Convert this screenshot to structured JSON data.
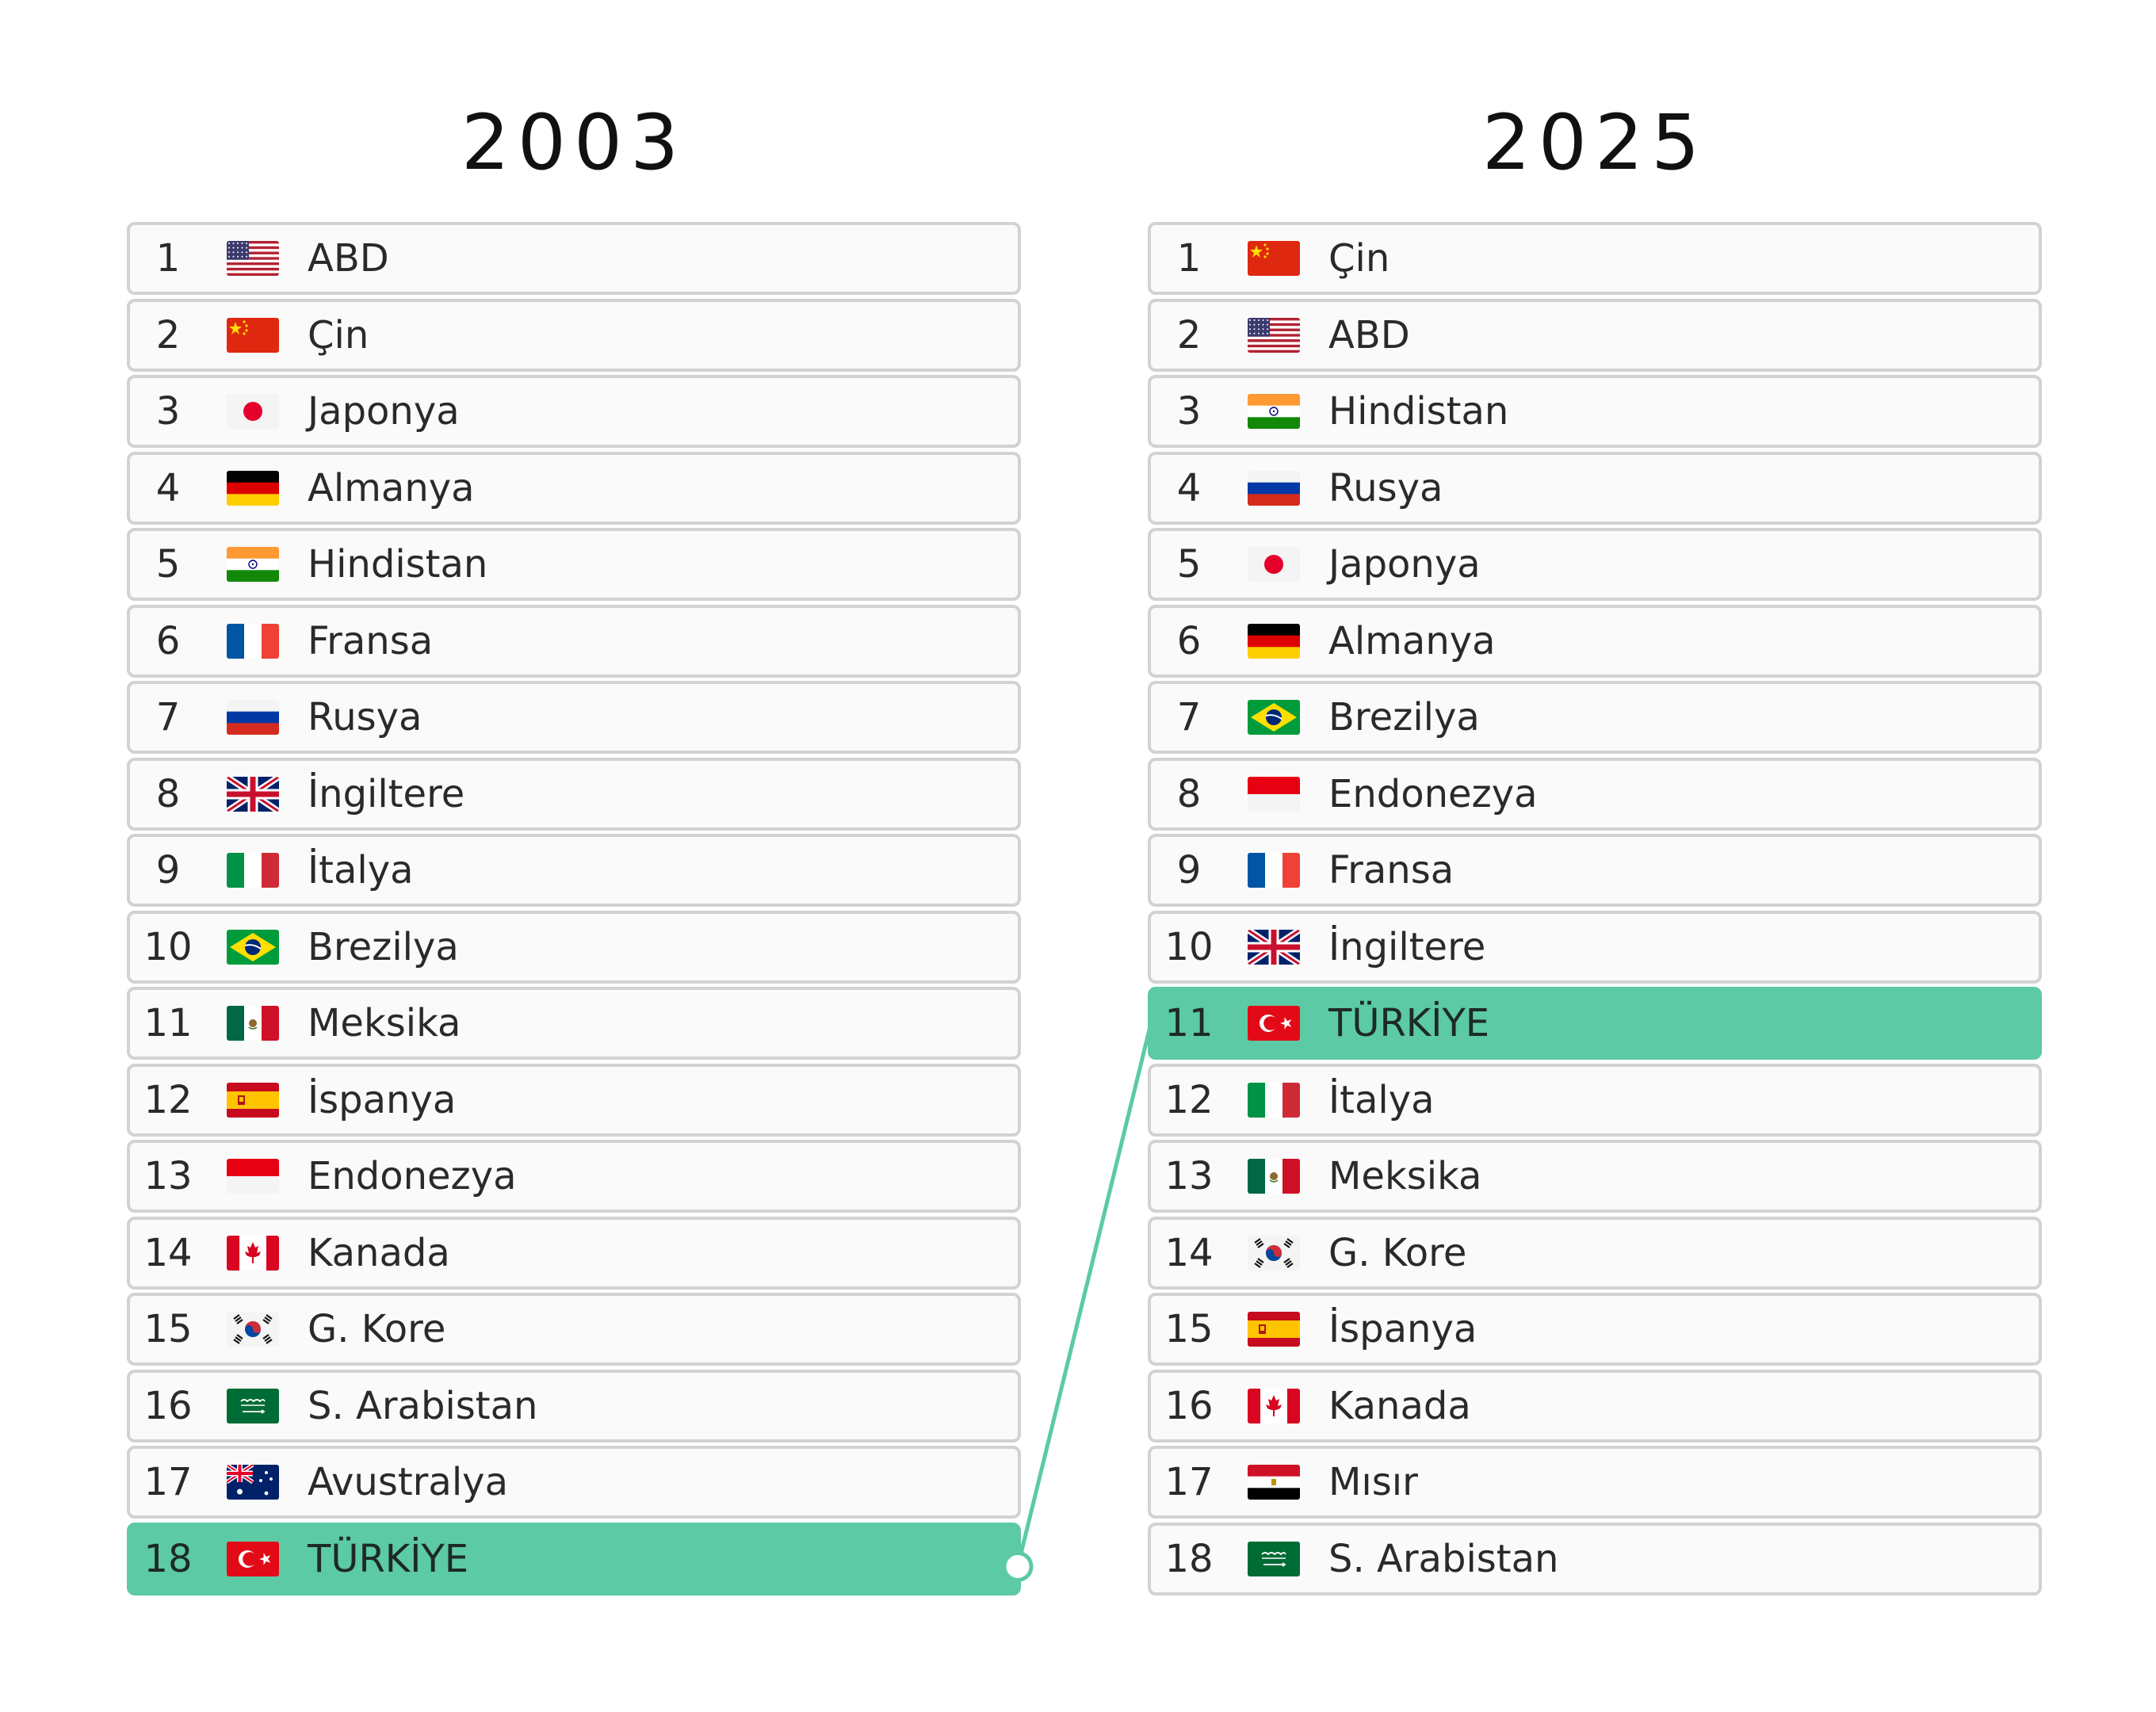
{
  "titles": {
    "left": "2003",
    "right": "2025"
  },
  "colors": {
    "highlight": "#5ccaa4",
    "connector": "#5ccaa4"
  },
  "left_list": [
    {
      "rank": "1",
      "name": "ABD",
      "flag": "usa-flag-icon"
    },
    {
      "rank": "2",
      "name": "Çin",
      "flag": "china-flag-icon"
    },
    {
      "rank": "3",
      "name": "Japonya",
      "flag": "japan-flag-icon"
    },
    {
      "rank": "4",
      "name": "Almanya",
      "flag": "germany-flag-icon"
    },
    {
      "rank": "5",
      "name": "Hindistan",
      "flag": "india-flag-icon"
    },
    {
      "rank": "6",
      "name": "Fransa",
      "flag": "france-flag-icon"
    },
    {
      "rank": "7",
      "name": "Rusya",
      "flag": "russia-flag-icon"
    },
    {
      "rank": "8",
      "name": "İngiltere",
      "flag": "uk-flag-icon"
    },
    {
      "rank": "9",
      "name": "İtalya",
      "flag": "italy-flag-icon"
    },
    {
      "rank": "10",
      "name": "Brezilya",
      "flag": "brazil-flag-icon"
    },
    {
      "rank": "11",
      "name": "Meksika",
      "flag": "mexico-flag-icon"
    },
    {
      "rank": "12",
      "name": "İspanya",
      "flag": "spain-flag-icon"
    },
    {
      "rank": "13",
      "name": "Endonezya",
      "flag": "indonesia-flag-icon"
    },
    {
      "rank": "14",
      "name": "Kanada",
      "flag": "canada-flag-icon"
    },
    {
      "rank": "15",
      "name": "G. Kore",
      "flag": "south-korea-flag-icon"
    },
    {
      "rank": "16",
      "name": "S. Arabistan",
      "flag": "saudi-arabia-flag-icon"
    },
    {
      "rank": "17",
      "name": "Avustralya",
      "flag": "australia-flag-icon"
    },
    {
      "rank": "18",
      "name": "TÜRKİYE",
      "flag": "turkey-flag-icon",
      "highlight": true
    }
  ],
  "right_list": [
    {
      "rank": "1",
      "name": "Çin",
      "flag": "china-flag-icon"
    },
    {
      "rank": "2",
      "name": "ABD",
      "flag": "usa-flag-icon"
    },
    {
      "rank": "3",
      "name": "Hindistan",
      "flag": "india-flag-icon"
    },
    {
      "rank": "4",
      "name": "Rusya",
      "flag": "russia-flag-icon"
    },
    {
      "rank": "5",
      "name": "Japonya",
      "flag": "japan-flag-icon"
    },
    {
      "rank": "6",
      "name": "Almanya",
      "flag": "germany-flag-icon"
    },
    {
      "rank": "7",
      "name": "Brezilya",
      "flag": "brazil-flag-icon"
    },
    {
      "rank": "8",
      "name": "Endonezya",
      "flag": "indonesia-flag-icon"
    },
    {
      "rank": "9",
      "name": "Fransa",
      "flag": "france-flag-icon"
    },
    {
      "rank": "10",
      "name": "İngiltere",
      "flag": "uk-flag-icon"
    },
    {
      "rank": "11",
      "name": "TÜRKİYE",
      "flag": "turkey-flag-icon",
      "highlight": true
    },
    {
      "rank": "12",
      "name": "İtalya",
      "flag": "italy-flag-icon"
    },
    {
      "rank": "13",
      "name": "Meksika",
      "flag": "mexico-flag-icon"
    },
    {
      "rank": "14",
      "name": "G. Kore",
      "flag": "south-korea-flag-icon"
    },
    {
      "rank": "15",
      "name": "İspanya",
      "flag": "spain-flag-icon"
    },
    {
      "rank": "16",
      "name": "Kanada",
      "flag": "canada-flag-icon"
    },
    {
      "rank": "17",
      "name": "Mısır",
      "flag": "egypt-flag-icon"
    },
    {
      "rank": "18",
      "name": "S. Arabistan",
      "flag": "saudi-arabia-flag-icon"
    }
  ]
}
